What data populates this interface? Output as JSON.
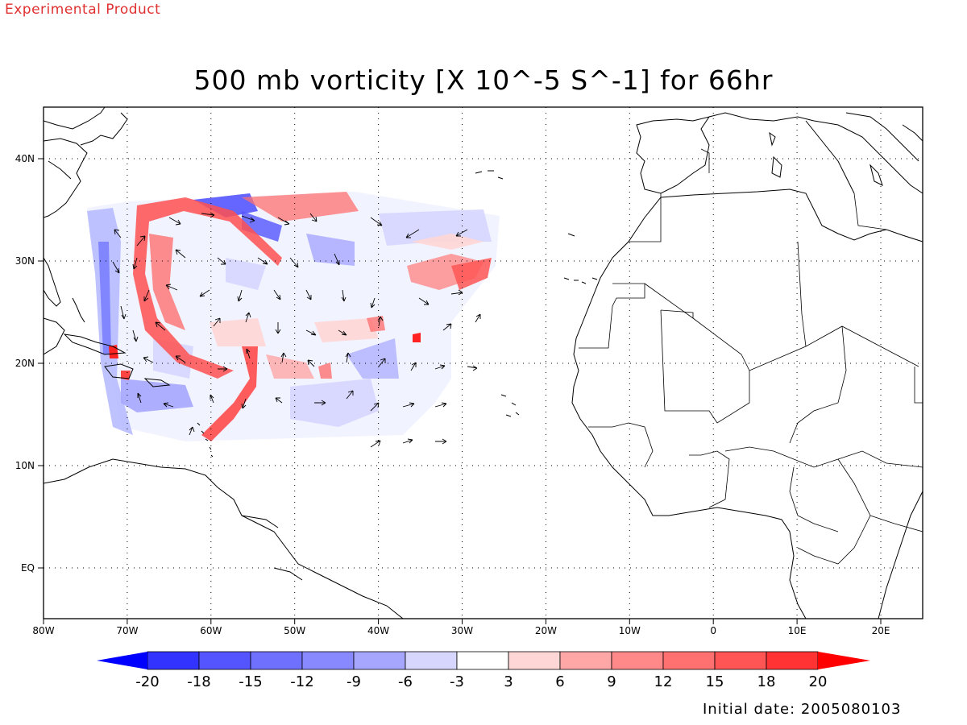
{
  "header": {
    "tag": "Experimental Product",
    "title": "500 mb vorticity [X 10^-5 S^-1] for 66hr"
  },
  "footer": {
    "initial_date": "Initial date: 2005080103"
  },
  "map": {
    "lon_range": [
      -80,
      25
    ],
    "lat_range": [
      -5,
      45
    ],
    "lon_ticks": [
      "80W",
      "70W",
      "60W",
      "50W",
      "40W",
      "30W",
      "20W",
      "10W",
      "0",
      "10E",
      "20E"
    ],
    "lat_ticks": [
      "EQ",
      "10N",
      "20N",
      "30N",
      "40N"
    ],
    "grid": true
  },
  "colorbar": {
    "labels": [
      "-20",
      "-18",
      "-15",
      "-12",
      "-9",
      "-6",
      "-3",
      "3",
      "6",
      "9",
      "12",
      "15",
      "18",
      "20"
    ],
    "colors": [
      "#3333ff",
      "#5555ff",
      "#7070ff",
      "#8888ff",
      "#a6a6ff",
      "#d6d6ff",
      "#ffffff",
      "#ffd6d6",
      "#ffa6a6",
      "#ff8888",
      "#ff7070",
      "#ff5555",
      "#ff3333"
    ],
    "end_low": "#0000ff",
    "end_high": "#ff0000"
  }
}
